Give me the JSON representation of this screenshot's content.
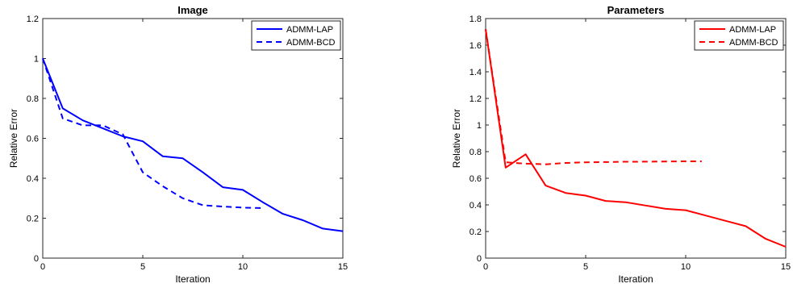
{
  "chart_data": [
    {
      "type": "line",
      "title": "Image",
      "xlabel": "Iteration",
      "ylabel": "Relative Error",
      "xlim": [
        0,
        15
      ],
      "ylim": [
        0,
        1.2
      ],
      "xticks": [
        "0",
        "5",
        "10",
        "15"
      ],
      "yticks": [
        "0",
        "0.2",
        "0.4",
        "0.6",
        "0.8",
        "1",
        "1.2"
      ],
      "legend_position": "top-right",
      "color": "#0000ff",
      "series": [
        {
          "name": "ADMM-LAP",
          "style": "solid",
          "x": [
            0,
            1,
            2,
            3,
            4,
            5,
            6,
            7,
            8,
            9,
            10,
            11,
            12,
            13,
            14,
            15
          ],
          "y": [
            1.0,
            0.75,
            0.69,
            0.65,
            0.61,
            0.585,
            0.51,
            0.5,
            0.43,
            0.355,
            0.342,
            0.28,
            0.222,
            0.19,
            0.148,
            0.135
          ]
        },
        {
          "name": "ADMM-BCD",
          "style": "dashed",
          "x": [
            0,
            1,
            2,
            3,
            4,
            5,
            6,
            7,
            8,
            9,
            10,
            11
          ],
          "y": [
            1.0,
            0.7,
            0.665,
            0.665,
            0.62,
            0.43,
            0.36,
            0.3,
            0.265,
            0.258,
            0.253,
            0.251
          ]
        }
      ]
    },
    {
      "type": "line",
      "title": "Parameters",
      "xlabel": "Iteration",
      "ylabel": "Relative Error",
      "xlim": [
        0,
        15
      ],
      "ylim": [
        0,
        1.8
      ],
      "xticks": [
        "0",
        "5",
        "10",
        "15"
      ],
      "yticks": [
        "0",
        "0.2",
        "0.4",
        "0.6",
        "0.8",
        "1",
        "1.2",
        "1.4",
        "1.6",
        "1.8"
      ],
      "legend_position": "top-right",
      "color": "#ff0000",
      "series": [
        {
          "name": "ADMM-LAP",
          "style": "solid",
          "x": [
            0,
            1,
            2,
            3,
            4,
            5,
            6,
            7,
            8,
            9,
            10,
            11,
            12,
            13,
            14,
            15
          ],
          "y": [
            1.72,
            0.68,
            0.78,
            0.545,
            0.49,
            0.47,
            0.43,
            0.42,
            0.395,
            0.37,
            0.36,
            0.32,
            0.28,
            0.24,
            0.145,
            0.085
          ]
        },
        {
          "name": "ADMM-BCD",
          "style": "dashed",
          "x": [
            0,
            1,
            2,
            3,
            4,
            5,
            6,
            7,
            8,
            9,
            10,
            10.8
          ],
          "y": [
            1.72,
            0.72,
            0.71,
            0.705,
            0.715,
            0.72,
            0.722,
            0.724,
            0.725,
            0.726,
            0.727,
            0.727
          ]
        }
      ]
    }
  ]
}
